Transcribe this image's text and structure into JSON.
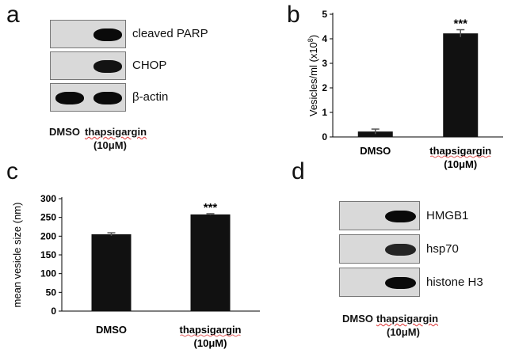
{
  "panels": {
    "a": {
      "letter": "a",
      "blots": [
        {
          "label": "cleaved PARP",
          "bands": [
            0.0,
            1.0
          ]
        },
        {
          "label": "CHOP",
          "bands": [
            0.0,
            0.95
          ]
        },
        {
          "label": "β-actin",
          "bands": [
            1.0,
            1.0
          ]
        }
      ],
      "lanes": [
        "DMSO",
        "thapsigargin"
      ],
      "conc": "(10μM)"
    },
    "d": {
      "letter": "d",
      "blots": [
        {
          "label": "HMGB1",
          "bands": [
            0.0,
            1.0
          ]
        },
        {
          "label": "hsp70",
          "bands": [
            0.0,
            0.85
          ]
        },
        {
          "label": "histone H3",
          "bands": [
            0.0,
            1.0
          ]
        }
      ],
      "lanes": [
        "DMSO",
        "thapsigargin"
      ],
      "conc": "(10μM)"
    }
  },
  "chart_data": [
    {
      "panel": "b",
      "type": "bar",
      "categories": [
        "DMSO",
        "thapsigargin"
      ],
      "category_sub": [
        "",
        "(10μM)"
      ],
      "values": [
        0.22,
        4.22
      ],
      "errors": [
        0.1,
        0.15
      ],
      "significance": [
        "",
        "***"
      ],
      "ylabel": "Vesicles/ml (x10",
      "ylabel_sup": "8",
      "ylabel_close": ")",
      "ylim": [
        0,
        5
      ],
      "yticks": [
        0,
        1,
        2,
        3,
        4,
        5
      ],
      "grid": false,
      "bar_color": "#111111"
    },
    {
      "panel": "c",
      "type": "bar",
      "categories": [
        "DMSO",
        "thapsigargin"
      ],
      "category_sub": [
        "",
        "(10μM)"
      ],
      "values": [
        205,
        258
      ],
      "errors": [
        4,
        2
      ],
      "significance": [
        "",
        "***"
      ],
      "ylabel": "mean vesicle size (nm)",
      "ylim": [
        0,
        300
      ],
      "yticks": [
        0,
        50,
        100,
        150,
        200,
        250,
        300
      ],
      "grid": false,
      "bar_color": "#111111"
    }
  ]
}
